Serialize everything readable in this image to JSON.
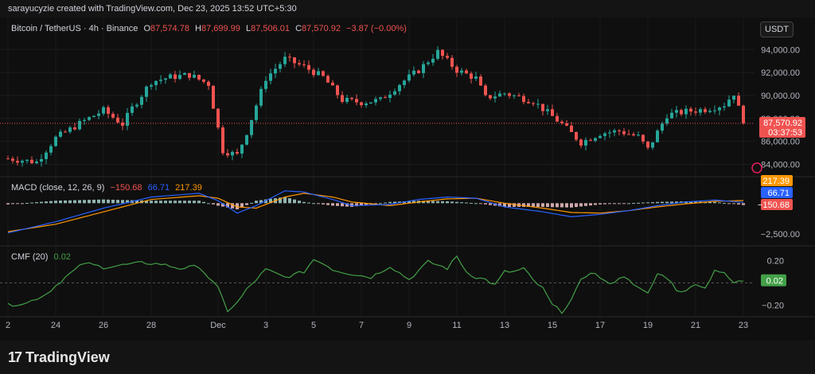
{
  "header": {
    "caption": "sarayucyzie created with TradingView.com, Dec 23, 2025 13:52 UTC+5:30"
  },
  "symbol": {
    "name": "Bitcoin / TetherUS · 4h · Binance",
    "o_label": "O",
    "o": "87,574.78",
    "h_label": "H",
    "h": "87,699.99",
    "l_label": "L",
    "l": "87,506.01",
    "c_label": "C",
    "c": "87,570.92",
    "change": "−3.87 (−0.00%)",
    "currency_button": "USDT"
  },
  "price_badge": {
    "price": "87,570.92",
    "countdown": "03:37:53"
  },
  "macd": {
    "title": "MACD (close, 12, 26, 9)",
    "histogram": "−150.68",
    "macd": "66.71",
    "signal": "217.39",
    "axis_label": "−2,500.00"
  },
  "cmf": {
    "title": "CMF (20)",
    "value": "0.02"
  },
  "colors": {
    "up": "#26a69a",
    "down": "#ef5350",
    "macd": "#2962ff",
    "signal": "#ff9800",
    "cmf": "#43a047",
    "bg": "#0f0f0f"
  },
  "chart_data": {
    "type": "candlestick",
    "price_axis_ticks": [
      "94,000.00",
      "92,000.00",
      "90,000.00",
      "88,000.00",
      "86,000.00",
      "84,000.00"
    ],
    "price_tick_values": [
      94000,
      92000,
      90000,
      88000,
      86000,
      84000
    ],
    "ylim": [
      83200,
      95200
    ],
    "x_ticks": [
      "2",
      "24",
      "26",
      "28",
      "Dec",
      "3",
      "5",
      "7",
      "9",
      "11",
      "13",
      "15",
      "17",
      "19",
      "21",
      "23"
    ],
    "x_tick_index": [
      0,
      10,
      20,
      30,
      44,
      54,
      64,
      74,
      84,
      94,
      104,
      114,
      124,
      134,
      144,
      154
    ],
    "last_price": 87570.92,
    "close_path": [
      [
        0,
        84500
      ],
      [
        6,
        84200
      ],
      [
        10,
        86300
      ],
      [
        16,
        87800
      ],
      [
        20,
        88700
      ],
      [
        24,
        87500
      ],
      [
        26,
        88900
      ],
      [
        30,
        91200
      ],
      [
        34,
        91600
      ],
      [
        38,
        91800
      ],
      [
        42,
        91000
      ],
      [
        45,
        85200
      ],
      [
        48,
        84800
      ],
      [
        50,
        86800
      ],
      [
        54,
        91500
      ],
      [
        58,
        93200
      ],
      [
        62,
        92500
      ],
      [
        66,
        91600
      ],
      [
        70,
        89600
      ],
      [
        74,
        89400
      ],
      [
        78,
        89600
      ],
      [
        82,
        91000
      ],
      [
        86,
        92200
      ],
      [
        90,
        93800
      ],
      [
        94,
        92200
      ],
      [
        98,
        91500
      ],
      [
        100,
        89800
      ],
      [
        104,
        90200
      ],
      [
        110,
        89500
      ],
      [
        116,
        87500
      ],
      [
        120,
        85900
      ],
      [
        124,
        86700
      ],
      [
        128,
        86900
      ],
      [
        132,
        86400
      ],
      [
        134,
        85300
      ],
      [
        138,
        88300
      ],
      [
        142,
        88600
      ],
      [
        146,
        88800
      ],
      [
        150,
        89200
      ],
      [
        152,
        90200
      ],
      [
        154,
        87571
      ]
    ],
    "cmf_ticks": [
      "0.20",
      "−0.20"
    ],
    "cmf_tick_values": [
      0.2,
      -0.2
    ],
    "cmf_ylim": [
      -0.29,
      0.29
    ],
    "cmf_path": [
      [
        0,
        -0.2
      ],
      [
        4,
        -0.18
      ],
      [
        8,
        -0.1
      ],
      [
        12,
        0.05
      ],
      [
        16,
        0.18
      ],
      [
        20,
        0.14
      ],
      [
        24,
        0.16
      ],
      [
        28,
        0.18
      ],
      [
        32,
        0.17
      ],
      [
        36,
        0.13
      ],
      [
        40,
        0.15
      ],
      [
        44,
        -0.05
      ],
      [
        46,
        -0.25
      ],
      [
        48,
        -0.18
      ],
      [
        50,
        -0.06
      ],
      [
        54,
        0.12
      ],
      [
        58,
        0.05
      ],
      [
        62,
        0.1
      ],
      [
        64,
        0.21
      ],
      [
        66,
        0.18
      ],
      [
        68,
        0.12
      ],
      [
        72,
        0.08
      ],
      [
        76,
        0.05
      ],
      [
        80,
        0.15
      ],
      [
        84,
        0.03
      ],
      [
        88,
        0.19
      ],
      [
        92,
        0.13
      ],
      [
        94,
        0.24
      ],
      [
        96,
        0.1
      ],
      [
        98,
        0.05
      ],
      [
        100,
        0.03
      ],
      [
        102,
        -0.02
      ],
      [
        104,
        0.1
      ],
      [
        106,
        0.1
      ],
      [
        108,
        0.13
      ],
      [
        110,
        0.02
      ],
      [
        112,
        -0.05
      ],
      [
        114,
        -0.2
      ],
      [
        116,
        -0.26
      ],
      [
        118,
        -0.15
      ],
      [
        120,
        0.02
      ],
      [
        122,
        0.1
      ],
      [
        124,
        0.05
      ],
      [
        126,
        -0.02
      ],
      [
        128,
        0.05
      ],
      [
        130,
        0.04
      ],
      [
        132,
        -0.05
      ],
      [
        134,
        -0.1
      ],
      [
        136,
        0.08
      ],
      [
        138,
        0.05
      ],
      [
        140,
        -0.06
      ],
      [
        142,
        -0.08
      ],
      [
        144,
        0.0
      ],
      [
        146,
        -0.05
      ],
      [
        148,
        0.12
      ],
      [
        150,
        0.08
      ],
      [
        152,
        0.0
      ],
      [
        154,
        0.02
      ]
    ],
    "macd_path": [
      [
        0,
        -2400
      ],
      [
        10,
        -1500
      ],
      [
        20,
        -400
      ],
      [
        30,
        500
      ],
      [
        40,
        800
      ],
      [
        44,
        200
      ],
      [
        48,
        -800
      ],
      [
        52,
        -200
      ],
      [
        58,
        1000
      ],
      [
        62,
        900
      ],
      [
        68,
        300
      ],
      [
        72,
        -200
      ],
      [
        80,
        -100
      ],
      [
        86,
        300
      ],
      [
        92,
        500
      ],
      [
        98,
        400
      ],
      [
        104,
        -300
      ],
      [
        112,
        -700
      ],
      [
        118,
        -1100
      ],
      [
        124,
        -900
      ],
      [
        130,
        -600
      ],
      [
        136,
        -200
      ],
      [
        142,
        100
      ],
      [
        148,
        250
      ],
      [
        154,
        67
      ]
    ],
    "signal_path": [
      [
        0,
        -2300
      ],
      [
        10,
        -1700
      ],
      [
        20,
        -700
      ],
      [
        30,
        300
      ],
      [
        40,
        600
      ],
      [
        44,
        400
      ],
      [
        48,
        -300
      ],
      [
        52,
        -400
      ],
      [
        58,
        500
      ],
      [
        62,
        800
      ],
      [
        68,
        500
      ],
      [
        72,
        100
      ],
      [
        80,
        -200
      ],
      [
        86,
        100
      ],
      [
        92,
        350
      ],
      [
        98,
        400
      ],
      [
        104,
        0
      ],
      [
        112,
        -400
      ],
      [
        118,
        -750
      ],
      [
        124,
        -800
      ],
      [
        130,
        -600
      ],
      [
        136,
        -300
      ],
      [
        142,
        -50
      ],
      [
        148,
        150
      ],
      [
        154,
        217
      ]
    ],
    "macd_ylim": [
      -3000,
      1500
    ]
  }
}
